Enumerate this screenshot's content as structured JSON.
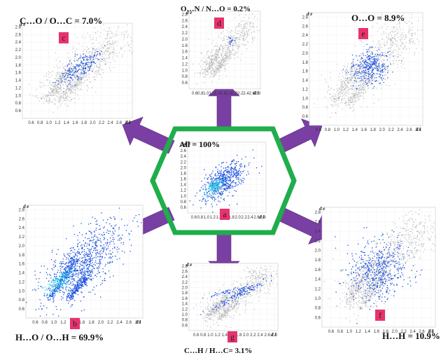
{
  "chart_data": {
    "type": "scatter",
    "description_kind": "Hirshfeld surface 2D fingerprint plots",
    "axis_labels": {
      "x": "d i",
      "y": "d e"
    },
    "axis_ticks": [
      "0.6",
      "0.8",
      "1.0",
      "1.2",
      "1.4",
      "1.6",
      "1.8",
      "2.0",
      "2.2",
      "2.4",
      "2.6",
      "2.8"
    ],
    "axis_range": [
      0.4,
      2.9
    ],
    "panels": [
      {
        "id": "a",
        "title": "All = 100%",
        "contact": "All",
        "percent": 100.0
      },
      {
        "id": "b",
        "title": "H…O / O…H = 69.9%",
        "contact": "H…O / O…H",
        "percent": 69.9
      },
      {
        "id": "c",
        "title": "C…O / O…C = 7.0%",
        "contact": "C…O / O…C",
        "percent": 7.0
      },
      {
        "id": "d",
        "title": "O…N / N…O = 0.2%",
        "contact": "O…N / N…O",
        "percent": 0.2
      },
      {
        "id": "e",
        "title": "O…O = 8.9%",
        "contact": "O…O",
        "percent": 8.9
      },
      {
        "id": "f",
        "title": "H…H = 10.9%",
        "contact": "H…H",
        "percent": 10.9
      },
      {
        "id": "g",
        "title": "C…H / H…C= 3.1%",
        "contact": "C…H / H…C",
        "percent": 3.1
      }
    ]
  },
  "colors": {
    "arrow": "#7a3fa3",
    "hexagon": "#1fae4b",
    "badge": "#e8336d",
    "gray_points": "#b4b4b4",
    "blue_points": "#1a4fe0",
    "cyan_points": "#32c8e6"
  }
}
